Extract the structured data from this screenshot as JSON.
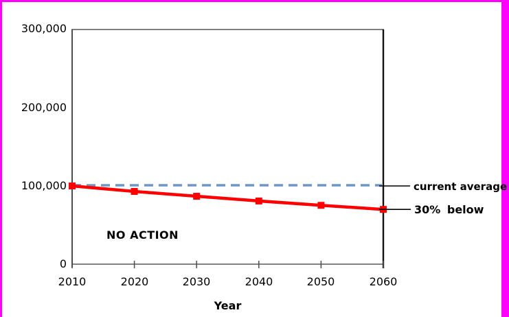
{
  "frame": {
    "border_color": "#ff00ff",
    "background_color": "#ffffff"
  },
  "chart_data": {
    "type": "line",
    "title": "",
    "xlabel": "Year",
    "ylabel": "",
    "x": [
      2010,
      2020,
      2030,
      2040,
      2050,
      2060
    ],
    "xtick_labels": [
      "2010",
      "2020",
      "2030",
      "2040",
      "2050",
      "2060"
    ],
    "yticks": [
      0,
      100000,
      200000,
      300000
    ],
    "ytick_labels": [
      "0",
      "100,000",
      "200,000",
      "300,000"
    ],
    "xlim": [
      2010,
      2060
    ],
    "ylim": [
      0,
      300000
    ],
    "grid": false,
    "legend": "none",
    "series": [
      {
        "name": "NO ACTION",
        "color": "#ff0000",
        "style": "solid",
        "marker": "square",
        "values": [
          100000,
          93000,
          86800,
          80800,
          75200,
          70000
        ]
      },
      {
        "name": "current average",
        "color": "#6f96c8",
        "style": "dashed",
        "marker": "none",
        "values": [
          100000,
          100000,
          100000,
          100000,
          100000,
          100000
        ]
      }
    ],
    "annotations": [
      {
        "text": "NO ACTION",
        "position": "inside-plot-lower-left"
      },
      {
        "text": "current average",
        "position": "right-of-plot",
        "points_to_value": 100000
      },
      {
        "text": "30% below",
        "position": "right-of-plot",
        "points_to_value": 70000
      }
    ],
    "axis_color": "#6b6b6b",
    "right_axis_color": "#111111",
    "leader_line_color": "#000000"
  },
  "labels": {
    "no_action": "NO ACTION",
    "current_average": "current average",
    "thirty_below": "30% below"
  }
}
